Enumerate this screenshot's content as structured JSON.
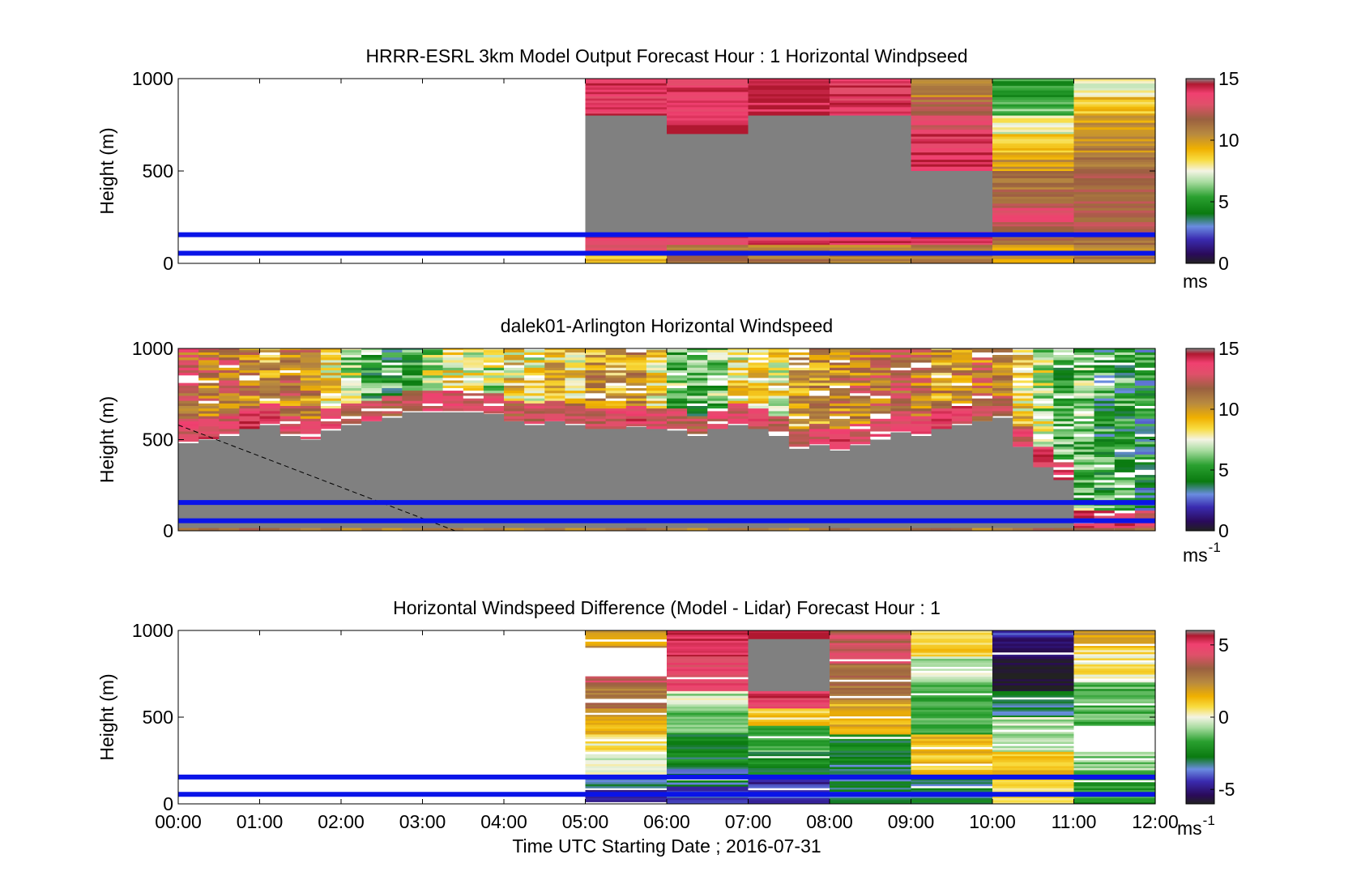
{
  "figure": {
    "xlabel": "Time UTC  Starting Date ; 2016-07-31",
    "x_ticks": [
      "00:00",
      "01:00",
      "02:00",
      "03:00",
      "04:00",
      "05:00",
      "06:00",
      "07:00",
      "08:00",
      "09:00",
      "10:00",
      "11:00",
      "12:00"
    ],
    "ylabel": "Height (m)",
    "y_ticks": [
      "0",
      "500",
      "1000"
    ],
    "blue_line_heights_m": [
      55,
      155
    ]
  },
  "chart_data": [
    {
      "type": "heatmap",
      "title": "HRRR-ESRL 3km Model Output   Forecast Hour : 1 Horizontal Windpseed",
      "xlabel": "",
      "ylabel": "Height (m)",
      "xlim_hours": [
        0,
        12
      ],
      "ylim": [
        0,
        1000
      ],
      "colorbar": {
        "ticks": [
          "0",
          "5",
          "10",
          "15"
        ],
        "unit": "ms",
        "range": [
          0,
          15
        ]
      },
      "columns": [
        {
          "start": 5,
          "end": 6,
          "cells": [
            {
              "y0": 800,
              "y1": 1000,
              "v": 13.8
            },
            {
              "y0": 0,
              "y1": 800,
              "v": null,
              "gray": true
            },
            {
              "y0": 100,
              "y1": 150,
              "v": 13.5
            },
            {
              "y0": 50,
              "y1": 100,
              "v": 13.5
            },
            {
              "y0": 0,
              "y1": 50,
              "v": 9
            }
          ]
        },
        {
          "start": 6,
          "end": 7,
          "cells": [
            {
              "y0": 800,
              "y1": 1000,
              "v": 13.8
            },
            {
              "y0": 700,
              "y1": 800,
              "v": 14.5
            },
            {
              "y0": 0,
              "y1": 700,
              "v": null,
              "gray": true
            },
            {
              "y0": 100,
              "y1": 150,
              "v": 13.5
            },
            {
              "y0": 0,
              "y1": 100,
              "v": 11
            }
          ]
        },
        {
          "start": 7,
          "end": 8,
          "cells": [
            {
              "y0": 800,
              "y1": 1000,
              "v": 14.5
            },
            {
              "y0": 0,
              "y1": 800,
              "v": null,
              "gray": true
            },
            {
              "y0": 100,
              "y1": 150,
              "v": 13.5
            },
            {
              "y0": 0,
              "y1": 100,
              "v": 11
            }
          ]
        },
        {
          "start": 8,
          "end": 9,
          "cells": [
            {
              "y0": 800,
              "y1": 1000,
              "v": 13.8
            },
            {
              "y0": 0,
              "y1": 800,
              "v": null,
              "gray": true
            },
            {
              "y0": 100,
              "y1": 170,
              "v": 14
            },
            {
              "y0": 0,
              "y1": 100,
              "v": 11
            }
          ]
        },
        {
          "start": 9,
          "end": 10,
          "cells": [
            {
              "y0": 900,
              "y1": 1000,
              "v": 10.5
            },
            {
              "y0": 800,
              "y1": 900,
              "v": 11.5
            },
            {
              "y0": 700,
              "y1": 800,
              "v": 13
            },
            {
              "y0": 600,
              "y1": 700,
              "v": 13.8
            },
            {
              "y0": 500,
              "y1": 600,
              "v": 14.5
            },
            {
              "y0": 170,
              "y1": 500,
              "v": null,
              "gray": true
            },
            {
              "y0": 100,
              "y1": 170,
              "v": 13.8
            },
            {
              "y0": 0,
              "y1": 100,
              "v": 11
            }
          ]
        },
        {
          "start": 10,
          "end": 11,
          "cells": [
            {
              "y0": 900,
              "y1": 1000,
              "v": 5
            },
            {
              "y0": 800,
              "y1": 900,
              "v": 6
            },
            {
              "y0": 700,
              "y1": 800,
              "v": 7.5
            },
            {
              "y0": 600,
              "y1": 700,
              "v": 9
            },
            {
              "y0": 500,
              "y1": 600,
              "v": 10
            },
            {
              "y0": 400,
              "y1": 500,
              "v": 11
            },
            {
              "y0": 300,
              "y1": 400,
              "v": 11.5
            },
            {
              "y0": 200,
              "y1": 300,
              "v": 13
            },
            {
              "y0": 100,
              "y1": 200,
              "v": 11.5
            },
            {
              "y0": 0,
              "y1": 100,
              "v": 10
            }
          ]
        },
        {
          "start": 11,
          "end": 12,
          "cells": [
            {
              "y0": 900,
              "y1": 1000,
              "v": 7.5
            },
            {
              "y0": 800,
              "y1": 900,
              "v": 9
            },
            {
              "y0": 700,
              "y1": 800,
              "v": 10
            },
            {
              "y0": 600,
              "y1": 700,
              "v": 10.5
            },
            {
              "y0": 500,
              "y1": 600,
              "v": 11
            },
            {
              "y0": 400,
              "y1": 500,
              "v": 11.5
            },
            {
              "y0": 300,
              "y1": 400,
              "v": 11.8
            },
            {
              "y0": 200,
              "y1": 300,
              "v": 12
            },
            {
              "y0": 100,
              "y1": 200,
              "v": 11.5
            },
            {
              "y0": 0,
              "y1": 100,
              "v": 10.5
            }
          ]
        }
      ]
    },
    {
      "type": "heatmap",
      "title": "dalek01-Arlington  Horizontal Windspeed",
      "xlabel": "",
      "ylabel": "Height (m)",
      "xlim_hours": [
        0,
        12
      ],
      "ylim": [
        0,
        1000
      ],
      "colorbar": {
        "ticks": [
          "0",
          "5",
          "10",
          "15"
        ],
        "unit": "ms",
        "unit_exponent": "-1",
        "range": [
          0,
          15
        ]
      },
      "profiles_time_hours": [
        0.0,
        0.25,
        0.5,
        0.75,
        1.0,
        1.25,
        1.5,
        1.75,
        2.0,
        2.25,
        2.5,
        2.75,
        3.0,
        3.25,
        3.5,
        3.75,
        4.0,
        4.25,
        4.5,
        4.75,
        5.0,
        5.25,
        5.5,
        5.75,
        6.0,
        6.25,
        6.5,
        6.75,
        7.0,
        7.25,
        7.5,
        7.75,
        8.0,
        8.25,
        8.5,
        8.75,
        9.0,
        9.25,
        9.5,
        9.75,
        10.0,
        10.25,
        10.5,
        10.75,
        11.0,
        11.25,
        11.5,
        11.75
      ],
      "gray_top_m": [
        480,
        500,
        520,
        560,
        580,
        520,
        500,
        550,
        580,
        600,
        620,
        650,
        650,
        650,
        650,
        640,
        600,
        580,
        600,
        580,
        560,
        560,
        570,
        560,
        550,
        520,
        560,
        580,
        560,
        520,
        450,
        470,
        440,
        470,
        500,
        540,
        520,
        560,
        580,
        600,
        620,
        460,
        350,
        280,
        0,
        0,
        0,
        0
      ],
      "upper_mean_ms": [
        12,
        11,
        11.5,
        10.5,
        10,
        11,
        10.5,
        8.5,
        7,
        5.5,
        5,
        5.5,
        7,
        8,
        7.5,
        7,
        8.5,
        8,
        9,
        8.5,
        10,
        9.5,
        10,
        8.5,
        6,
        5.5,
        6,
        8,
        9,
        8,
        9.5,
        10,
        10.5,
        11,
        11.5,
        12,
        11,
        10,
        10.5,
        11,
        10,
        8.5,
        7,
        5.5,
        6,
        5,
        5,
        4.5
      ],
      "lower_mean_ms": [
        13,
        13.5,
        13,
        14,
        13.5,
        13,
        12.5,
        13,
        12,
        13,
        12,
        12.5,
        13,
        13,
        12.5,
        13,
        12,
        12.5,
        13,
        12,
        12.5,
        13,
        13.5,
        13,
        12.5,
        12,
        13,
        13,
        13,
        12.5,
        12,
        13,
        13.5,
        13,
        13,
        13,
        13.5,
        13.8,
        13.5,
        12,
        12.5,
        13,
        14,
        13.5,
        13.8,
        13.8,
        13.5,
        13
      ]
    },
    {
      "type": "heatmap",
      "title": "Horizontal Windspeed Difference (Model - Lidar) Forecast Hour : 1",
      "xlabel": "Time UTC  Starting Date ; 2016-07-31",
      "ylabel": "Height (m)",
      "xlim_hours": [
        0,
        12
      ],
      "ylim": [
        0,
        1000
      ],
      "colorbar": {
        "ticks": [
          "-5",
          "0",
          "5"
        ],
        "unit": "ms",
        "unit_exponent": "-1",
        "range": [
          -6,
          6
        ]
      },
      "columns": [
        {
          "start": 5,
          "end": 6,
          "cells": [
            {
              "y0": 900,
              "y1": 1000,
              "v": 2
            },
            {
              "y0": 750,
              "y1": 900,
              "v": null
            },
            {
              "y0": 700,
              "y1": 750,
              "v": 4
            },
            {
              "y0": 550,
              "y1": 700,
              "v": 3
            },
            {
              "y0": 400,
              "y1": 550,
              "v": 1.5
            },
            {
              "y0": 300,
              "y1": 400,
              "v": 0.5
            },
            {
              "y0": 150,
              "y1": 300,
              "v": 0
            },
            {
              "y0": 80,
              "y1": 150,
              "v": -3
            },
            {
              "y0": 0,
              "y1": 80,
              "v": -5
            }
          ]
        },
        {
          "start": 6,
          "end": 7,
          "cells": [
            {
              "y0": 850,
              "y1": 1000,
              "v": 5.5
            },
            {
              "y0": 650,
              "y1": 850,
              "v": 4.8
            },
            {
              "y0": 550,
              "y1": 650,
              "v": -0.5
            },
            {
              "y0": 400,
              "y1": 550,
              "v": -1.5
            },
            {
              "y0": 200,
              "y1": 400,
              "v": -2.5
            },
            {
              "y0": 100,
              "y1": 200,
              "v": -3.2
            },
            {
              "y0": 0,
              "y1": 100,
              "v": -4
            }
          ]
        },
        {
          "start": 7,
          "end": 8,
          "cells": [
            {
              "y0": 950,
              "y1": 1000,
              "v": 5.5
            },
            {
              "y0": 650,
              "y1": 950,
              "v": null,
              "gray": true
            },
            {
              "y0": 550,
              "y1": 650,
              "v": 5
            },
            {
              "y0": 450,
              "y1": 550,
              "v": 0.8
            },
            {
              "y0": 300,
              "y1": 450,
              "v": -1.5
            },
            {
              "y0": 150,
              "y1": 300,
              "v": -2.5
            },
            {
              "y0": 0,
              "y1": 150,
              "v": -4.5
            }
          ]
        },
        {
          "start": 8,
          "end": 9,
          "cells": [
            {
              "y0": 800,
              "y1": 1000,
              "v": 4
            },
            {
              "y0": 600,
              "y1": 800,
              "v": 3
            },
            {
              "y0": 400,
              "y1": 600,
              "v": 1.5
            },
            {
              "y0": 250,
              "y1": 400,
              "v": -2.5
            },
            {
              "y0": 0,
              "y1": 250,
              "v": -3
            }
          ]
        },
        {
          "start": 9,
          "end": 10,
          "cells": [
            {
              "y0": 850,
              "y1": 1000,
              "v": 1
            },
            {
              "y0": 700,
              "y1": 850,
              "v": -0.5
            },
            {
              "y0": 400,
              "y1": 700,
              "v": -1.5
            },
            {
              "y0": 150,
              "y1": 400,
              "v": 1.2
            },
            {
              "y0": 0,
              "y1": 150,
              "v": -3
            }
          ]
        },
        {
          "start": 10,
          "end": 11,
          "cells": [
            {
              "y0": 950,
              "y1": 1000,
              "v": -4.5
            },
            {
              "y0": 850,
              "y1": 950,
              "v": -5
            },
            {
              "y0": 650,
              "y1": 850,
              "v": -6
            },
            {
              "y0": 500,
              "y1": 650,
              "v": -3
            },
            {
              "y0": 300,
              "y1": 500,
              "v": -0.5
            },
            {
              "y0": 150,
              "y1": 300,
              "v": 1
            },
            {
              "y0": 0,
              "y1": 150,
              "v": 0.8
            }
          ]
        },
        {
          "start": 11,
          "end": 12,
          "cells": [
            {
              "y0": 900,
              "y1": 1000,
              "v": 2
            },
            {
              "y0": 700,
              "y1": 900,
              "v": 0.5
            },
            {
              "y0": 450,
              "y1": 700,
              "v": -1.5
            },
            {
              "y0": 300,
              "y1": 450,
              "v": null
            },
            {
              "y0": 150,
              "y1": 300,
              "v": -1
            },
            {
              "y0": 0,
              "y1": 150,
              "v": -2
            }
          ]
        }
      ]
    }
  ]
}
